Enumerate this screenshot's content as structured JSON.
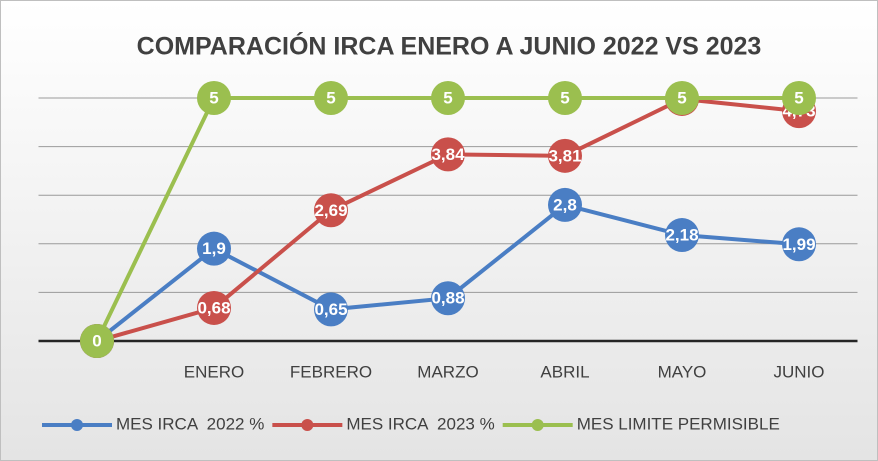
{
  "chart_data": {
    "type": "line",
    "title": "COMPARACIÓN IRCA ENERO A JUNIO 2022 VS 2023",
    "categories": [
      null,
      "ENERO",
      "FEBRERO",
      "MARZO",
      "ABRIL",
      "MAYO",
      "JUNIO"
    ],
    "series": [
      {
        "name": "MES IRCA  2022 %",
        "color": "#4a7ec4",
        "values": [
          0,
          1.9,
          0.65,
          0.88,
          2.8,
          2.18,
          1.99
        ],
        "value_labels": [
          "0",
          "1,9",
          "0,65",
          "0,88",
          "2,8",
          "2,18",
          "1,99"
        ]
      },
      {
        "name": "MES IRCA  2023 %",
        "color": "#c9504b",
        "values": [
          0,
          0.68,
          2.69,
          3.84,
          3.81,
          4.98,
          4.73
        ],
        "value_labels": [
          "0",
          "0,68",
          "2,69",
          "3,84",
          "3,81",
          "4,98",
          "4,73"
        ]
      },
      {
        "name": "MES LIMITE PERMISIBLE",
        "color": "#9bbf4f",
        "values": [
          0,
          5,
          5,
          5,
          5,
          5,
          5
        ]
      }
    ],
    "ylim": [
      0,
      5
    ],
    "yticks": [
      0,
      1,
      2,
      3,
      4,
      5
    ],
    "grid": true,
    "legend": "bottom"
  }
}
